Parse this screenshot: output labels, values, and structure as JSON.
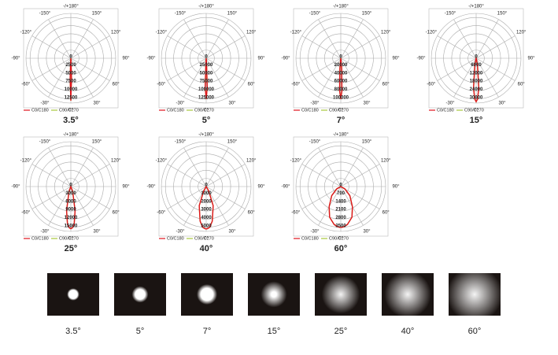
{
  "chart_data": [
    {
      "type": "polar",
      "title": "3.5°",
      "x": [
        -90,
        -60,
        -45,
        -30,
        -20,
        -10,
        -5,
        -2,
        0,
        2,
        5,
        10,
        20,
        30,
        45,
        60,
        90
      ],
      "series": [
        {
          "name": "C0/C180",
          "color": "#e0141e",
          "values": [
            0,
            0,
            0,
            0,
            0,
            0,
            300,
            6000,
            13000,
            6000,
            300,
            0,
            0,
            0,
            0,
            0,
            0
          ]
        },
        {
          "name": "C90/C270",
          "color": "#a8c83c",
          "values": [
            0,
            0,
            0,
            0,
            0,
            0,
            300,
            6000,
            13000,
            6000,
            300,
            0,
            0,
            0,
            0,
            0,
            0
          ]
        }
      ],
      "rlim": [
        0,
        13750
      ],
      "rticks": [
        0,
        2500,
        5000,
        7500,
        10000,
        12500
      ],
      "angle_ticks": [
        {
          "value": -150,
          "label": "-150°"
        },
        {
          "value": 180,
          "label": "-/+180°"
        },
        {
          "value": 150,
          "label": "150°"
        },
        {
          "value": -120,
          "label": "-120°"
        },
        {
          "value": 120,
          "label": "120°"
        },
        {
          "value": -90,
          "label": "-90°"
        },
        {
          "value": 90,
          "label": "90°"
        },
        {
          "value": -60,
          "label": "-60°"
        },
        {
          "value": 60,
          "label": "60°"
        },
        {
          "value": -30,
          "label": "-30°"
        },
        {
          "value": 0,
          "label": "0°"
        },
        {
          "value": 30,
          "label": "30°"
        }
      ],
      "grid": true
    },
    {
      "type": "polar",
      "title": "5°",
      "x": [
        -90,
        -60,
        -45,
        -30,
        -20,
        -10,
        -5,
        -2,
        0,
        2,
        5,
        10,
        20,
        30,
        45,
        60,
        90
      ],
      "series": [
        {
          "name": "C0/C180",
          "color": "#e0141e",
          "values": [
            0,
            0,
            0,
            0,
            0,
            0,
            10000,
            90000,
            125000,
            90000,
            10000,
            0,
            0,
            0,
            0,
            0,
            0
          ]
        },
        {
          "name": "C90/C270",
          "color": "#a8c83c",
          "values": [
            0,
            0,
            0,
            0,
            0,
            0,
            10000,
            90000,
            125000,
            90000,
            10000,
            0,
            0,
            0,
            0,
            0,
            0
          ]
        }
      ],
      "rlim": [
        0,
        137500
      ],
      "rticks": [
        0,
        25000,
        50000,
        75000,
        100000,
        125000
      ],
      "angle_ticks": [
        {
          "value": -150,
          "label": "-150°"
        },
        {
          "value": 180,
          "label": "-/+180°"
        },
        {
          "value": 150,
          "label": "150°"
        },
        {
          "value": -120,
          "label": "-120°"
        },
        {
          "value": 120,
          "label": "120°"
        },
        {
          "value": -90,
          "label": "-90°"
        },
        {
          "value": 90,
          "label": "90°"
        },
        {
          "value": -60,
          "label": "-60°"
        },
        {
          "value": 60,
          "label": "60°"
        },
        {
          "value": -30,
          "label": "-30°"
        },
        {
          "value": 0,
          "label": "0°"
        },
        {
          "value": 30,
          "label": "30°"
        }
      ],
      "grid": true
    },
    {
      "type": "polar",
      "title": "7°",
      "x": [
        -90,
        -60,
        -45,
        -30,
        -20,
        -10,
        -5,
        -2,
        0,
        2,
        5,
        10,
        20,
        30,
        45,
        60,
        90
      ],
      "series": [
        {
          "name": "C0/C180",
          "color": "#e0141e",
          "values": [
            0,
            0,
            0,
            0,
            0,
            1000,
            25000,
            80000,
            100000,
            80000,
            25000,
            1000,
            0,
            0,
            0,
            0,
            0
          ]
        },
        {
          "name": "C90/C270",
          "color": "#a8c83c",
          "values": [
            0,
            0,
            0,
            0,
            0,
            1000,
            25000,
            80000,
            100000,
            80000,
            25000,
            1000,
            0,
            0,
            0,
            0,
            0
          ]
        }
      ],
      "rlim": [
        0,
        110000
      ],
      "rticks": [
        0,
        20000,
        40000,
        60000,
        80000,
        100000
      ],
      "angle_ticks": [
        {
          "value": -150,
          "label": "-150°"
        },
        {
          "value": 180,
          "label": "-/+180°"
        },
        {
          "value": 150,
          "label": "150°"
        },
        {
          "value": -120,
          "label": "-120°"
        },
        {
          "value": 120,
          "label": "120°"
        },
        {
          "value": -90,
          "label": "-90°"
        },
        {
          "value": 90,
          "label": "90°"
        },
        {
          "value": -60,
          "label": "-60°"
        },
        {
          "value": 60,
          "label": "60°"
        },
        {
          "value": -30,
          "label": "-30°"
        },
        {
          "value": 0,
          "label": "0°"
        },
        {
          "value": 30,
          "label": "30°"
        }
      ],
      "grid": true
    },
    {
      "type": "polar",
      "title": "15°",
      "x": [
        -90,
        -60,
        -45,
        -30,
        -20,
        -10,
        -5,
        -2,
        0,
        2,
        5,
        10,
        20,
        30,
        45,
        60,
        90
      ],
      "series": [
        {
          "name": "C0/C180",
          "color": "#e0141e",
          "values": [
            0,
            0,
            0,
            0,
            500,
            6000,
            22000,
            30000,
            32000,
            30000,
            22000,
            6000,
            500,
            0,
            0,
            0,
            0
          ]
        },
        {
          "name": "C90/C270",
          "color": "#a8c83c",
          "values": [
            0,
            0,
            0,
            0,
            500,
            6000,
            22000,
            30000,
            32000,
            30000,
            22000,
            6000,
            500,
            0,
            0,
            0,
            0
          ]
        }
      ],
      "rlim": [
        0,
        33000
      ],
      "rticks": [
        0,
        6000,
        12000,
        18000,
        24000,
        30000
      ],
      "angle_ticks": [
        {
          "value": -150,
          "label": "-150°"
        },
        {
          "value": 180,
          "label": "-/+180°"
        },
        {
          "value": 150,
          "label": "150°"
        },
        {
          "value": -120,
          "label": "-120°"
        },
        {
          "value": 120,
          "label": "120°"
        },
        {
          "value": -90,
          "label": "-90°"
        },
        {
          "value": 90,
          "label": "90°"
        },
        {
          "value": -60,
          "label": "-60°"
        },
        {
          "value": 60,
          "label": "60°"
        },
        {
          "value": -30,
          "label": "-30°"
        },
        {
          "value": 0,
          "label": "0°"
        },
        {
          "value": 30,
          "label": "30°"
        }
      ],
      "grid": true
    },
    {
      "type": "polar",
      "title": "25°",
      "x": [
        -90,
        -60,
        -45,
        -30,
        -20,
        -10,
        -5,
        -2,
        0,
        2,
        5,
        10,
        20,
        30,
        45,
        60,
        90
      ],
      "series": [
        {
          "name": "C0/C180",
          "color": "#e0141e",
          "values": [
            0,
            0,
            0,
            0,
            2000,
            9000,
            14000,
            15200,
            15500,
            15200,
            14000,
            9000,
            2000,
            0,
            0,
            0,
            0
          ]
        },
        {
          "name": "C90/C270",
          "color": "#a8c83c",
          "values": [
            0,
            0,
            0,
            0,
            2000,
            9000,
            14000,
            15200,
            15500,
            15200,
            14000,
            9000,
            2000,
            0,
            0,
            0,
            0
          ]
        }
      ],
      "rlim": [
        0,
        16500
      ],
      "rticks": [
        0,
        3000,
        6000,
        9000,
        12000,
        15000
      ],
      "angle_ticks": [
        {
          "value": -150,
          "label": "-150°"
        },
        {
          "value": 180,
          "label": "-/+180°"
        },
        {
          "value": 150,
          "label": "150°"
        },
        {
          "value": -120,
          "label": "-120°"
        },
        {
          "value": 120,
          "label": "120°"
        },
        {
          "value": -90,
          "label": "-90°"
        },
        {
          "value": 90,
          "label": "90°"
        },
        {
          "value": -60,
          "label": "-60°"
        },
        {
          "value": 60,
          "label": "60°"
        },
        {
          "value": -30,
          "label": "-30°"
        },
        {
          "value": 0,
          "label": "0°"
        },
        {
          "value": 30,
          "label": "30°"
        }
      ],
      "grid": true
    },
    {
      "type": "polar",
      "title": "40°",
      "x": [
        -90,
        -60,
        -45,
        -30,
        -20,
        -10,
        -5,
        -2,
        0,
        2,
        5,
        10,
        20,
        30,
        45,
        60,
        90
      ],
      "series": [
        {
          "name": "C0/C180",
          "color": "#e0141e",
          "values": [
            0,
            0,
            0,
            600,
            2500,
            4300,
            5000,
            5150,
            5200,
            5150,
            5000,
            4300,
            2500,
            600,
            0,
            0,
            0
          ]
        },
        {
          "name": "C90/C270",
          "color": "#a8c83c",
          "values": [
            0,
            0,
            0,
            600,
            2500,
            4300,
            5000,
            5150,
            5200,
            5150,
            5000,
            4300,
            2500,
            600,
            0,
            0,
            0
          ]
        }
      ],
      "rlim": [
        0,
        5500
      ],
      "rticks": [
        0,
        1000,
        2000,
        3000,
        4000,
        5000
      ],
      "angle_ticks": [
        {
          "value": -150,
          "label": "-150°"
        },
        {
          "value": 180,
          "label": "-/+180°"
        },
        {
          "value": 150,
          "label": "150°"
        },
        {
          "value": -120,
          "label": "-120°"
        },
        {
          "value": 120,
          "label": "120°"
        },
        {
          "value": -90,
          "label": "-90°"
        },
        {
          "value": 90,
          "label": "90°"
        },
        {
          "value": -60,
          "label": "-60°"
        },
        {
          "value": 60,
          "label": "60°"
        },
        {
          "value": -30,
          "label": "-30°"
        },
        {
          "value": 0,
          "label": "0°"
        },
        {
          "value": 30,
          "label": "30°"
        }
      ],
      "grid": true
    },
    {
      "type": "polar",
      "title": "60°",
      "x": [
        -90,
        -60,
        -45,
        -30,
        -20,
        -10,
        -5,
        -2,
        0,
        2,
        5,
        10,
        20,
        30,
        45,
        60,
        90
      ],
      "series": [
        {
          "name": "C0/C180",
          "color": "#e0141e",
          "values": [
            0,
            400,
            1100,
            2000,
            2800,
            3300,
            3450,
            3490,
            3500,
            3490,
            3450,
            3300,
            2800,
            2000,
            1100,
            400,
            0
          ]
        },
        {
          "name": "C90/C270",
          "color": "#a8c83c",
          "values": [
            0,
            400,
            1100,
            2000,
            2800,
            3300,
            3450,
            3490,
            3500,
            3490,
            3450,
            3300,
            2800,
            2000,
            1100,
            400,
            0
          ]
        }
      ],
      "rlim": [
        0,
        3850
      ],
      "rticks": [
        0,
        700,
        1400,
        2100,
        2800,
        3500
      ],
      "angle_ticks": [
        {
          "value": -150,
          "label": "-150°"
        },
        {
          "value": 180,
          "label": "-/+180°"
        },
        {
          "value": 150,
          "label": "150°"
        },
        {
          "value": -120,
          "label": "-120°"
        },
        {
          "value": 120,
          "label": "120°"
        },
        {
          "value": -90,
          "label": "-90°"
        },
        {
          "value": 90,
          "label": "90°"
        },
        {
          "value": -60,
          "label": "-60°"
        },
        {
          "value": 60,
          "label": "60°"
        },
        {
          "value": -30,
          "label": "-30°"
        },
        {
          "value": 0,
          "label": "0°"
        },
        {
          "value": 30,
          "label": "30°"
        }
      ],
      "grid": true
    }
  ],
  "beam_spots": {
    "labels": [
      "3.5°",
      "5°",
      "7°",
      "15°",
      "25°",
      "40°",
      "60°"
    ]
  }
}
